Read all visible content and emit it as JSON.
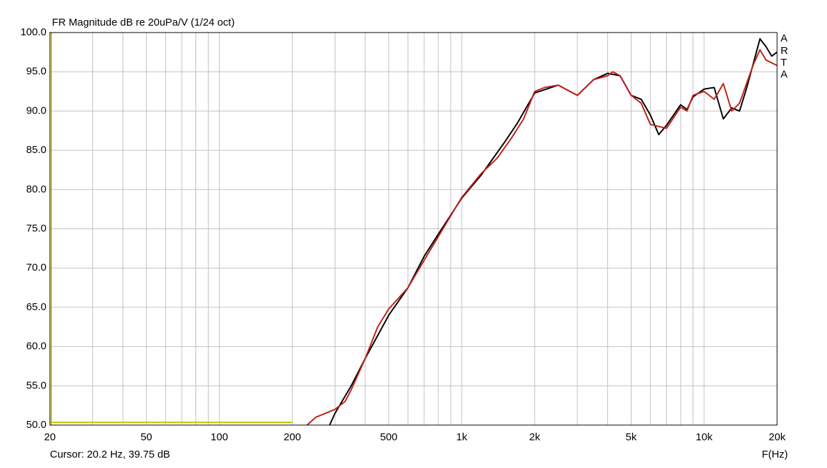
{
  "chart_data": {
    "type": "line",
    "title": "FR Magnitude dB re 20uPa/V (1/24 oct)",
    "x_label": "F(Hz)",
    "cursor_text": "Cursor: 20.2 Hz, 39.75 dB",
    "watermark": [
      "A",
      "R",
      "T",
      "A"
    ],
    "x_scale": "log",
    "grid": true,
    "xlim": [
      20,
      20000
    ],
    "ylim": [
      50,
      100
    ],
    "xticks": [
      20,
      50,
      100,
      200,
      500,
      {
        "value": 1000,
        "label": "1k"
      },
      {
        "value": 2000,
        "label": "2k"
      },
      {
        "value": 5000,
        "label": "5k"
      },
      {
        "value": 10000,
        "label": "10k"
      },
      {
        "value": 20000,
        "label": "20k"
      }
    ],
    "xgrid_minor": [
      30,
      40,
      60,
      70,
      80,
      90,
      300,
      400,
      600,
      700,
      800,
      900,
      3000,
      4000,
      6000,
      7000,
      8000,
      9000
    ],
    "yticks": [
      {
        "value": 50,
        "label": "50.0"
      },
      {
        "value": 55,
        "label": "55.0"
      },
      {
        "value": 60,
        "label": "60.0"
      },
      {
        "value": 65,
        "label": "65.0"
      },
      {
        "value": 70,
        "label": "70.0"
      },
      {
        "value": 75,
        "label": "75.0"
      },
      {
        "value": 80,
        "label": "80.0"
      },
      {
        "value": 85,
        "label": "85.0"
      },
      {
        "value": 90,
        "label": "90.0"
      },
      {
        "value": 95,
        "label": "95.0"
      },
      {
        "value": 100,
        "label": "100.0"
      }
    ],
    "series": [
      {
        "color": "#000000",
        "x": [
          285,
          300,
          350,
          400,
          500,
          600,
          700,
          800,
          1000,
          1200,
          1500,
          1700,
          2000,
          2500,
          3000,
          3500,
          4000,
          4500,
          5000,
          5500,
          6000,
          6500,
          7000,
          8000,
          8500,
          9000,
          10000,
          11000,
          12000,
          13000,
          14000,
          15000,
          17000,
          18000,
          19000,
          20000
        ],
        "values": [
          50,
          51.5,
          55,
          58.5,
          64,
          67.5,
          71.5,
          74.3,
          78.9,
          81.8,
          86,
          88.5,
          92.3,
          93.3,
          92.0,
          94.0,
          94.8,
          94.5,
          92.0,
          91.5,
          89.5,
          87.0,
          88.2,
          90.8,
          90.2,
          91.8,
          92.8,
          93.0,
          89.0,
          90.4,
          90.0,
          93,
          99.2,
          98.2,
          97,
          97.5
        ]
      },
      {
        "color": "#c0201a",
        "x": [
          230,
          250,
          300,
          330,
          350,
          400,
          450,
          500,
          600,
          700,
          800,
          1000,
          1200,
          1400,
          1600,
          1800,
          2000,
          2200,
          2500,
          3000,
          3500,
          4000,
          4200,
          4500,
          5000,
          5500,
          6000,
          7000,
          8000,
          8500,
          9000,
          10000,
          11000,
          11500,
          12000,
          13000,
          14000,
          16000,
          17000,
          18000,
          20000
        ],
        "values": [
          50,
          51.0,
          52.0,
          53,
          54.5,
          58.5,
          62.5,
          64.8,
          67.5,
          71,
          74,
          79,
          82,
          84,
          86.5,
          89,
          92.5,
          93,
          93.3,
          92,
          94,
          94.5,
          95,
          94.5,
          92,
          91,
          88.3,
          87.8,
          90.5,
          90,
          92,
          92.5,
          91.5,
          92.5,
          93.5,
          90,
          91,
          96,
          97.8,
          96.5,
          95.8
        ]
      }
    ]
  }
}
